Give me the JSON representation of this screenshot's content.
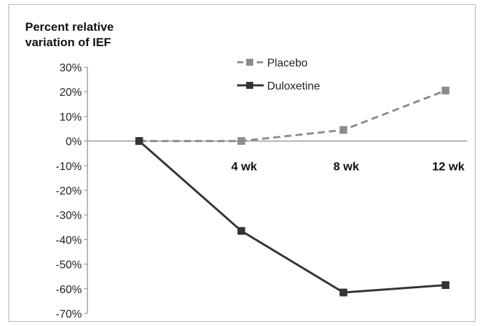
{
  "chart_data": {
    "type": "line",
    "title": "Percent relative variation of IEF",
    "title_lines": [
      "Percent relative",
      "variation of IEF"
    ],
    "x": [
      "",
      "4 wk",
      "8 wk",
      "12 wk"
    ],
    "xtick_labels": [
      "4 wk",
      "8 wk",
      "12 wk"
    ],
    "ytick_labels": [
      "30%",
      "20%",
      "10%",
      "0%",
      "-10%",
      "-20%",
      "-30%",
      "-40%",
      "-50%",
      "-60%",
      "-70%"
    ],
    "ylim": [
      -70,
      30
    ],
    "yunit": "%",
    "grid": false,
    "legend_position": "top-center",
    "series": [
      {
        "name": "Placebo",
        "values": [
          0,
          0,
          4.5,
          20.5
        ],
        "color": "#8c8c8c",
        "line_style": "dashed"
      },
      {
        "name": "Duloxetine",
        "values": [
          0,
          -36.5,
          -61.5,
          -58.5
        ],
        "color": "#333333",
        "line_style": "solid"
      }
    ]
  }
}
